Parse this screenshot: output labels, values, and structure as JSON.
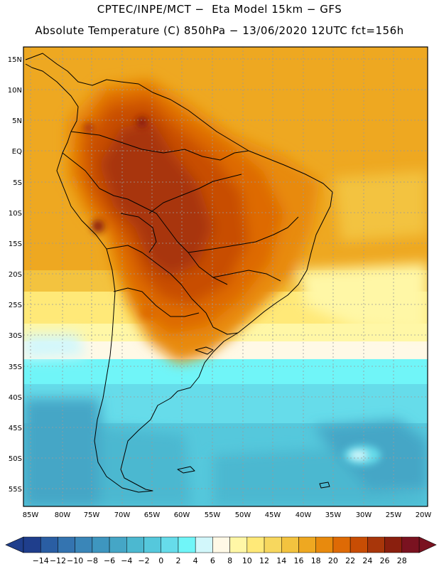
{
  "header": {
    "line1": "CPTEC/INPE/MCT −  Eta Model 15km − GFS",
    "line2": "Absolute Temperature (C) 850hPa − 13/06/2020 12UTC fct=156h"
  },
  "map": {
    "lat_labels": [
      "15N",
      "10N",
      "5N",
      "EQ",
      "5S",
      "10S",
      "15S",
      "20S",
      "25S",
      "30S",
      "35S",
      "40S",
      "45S",
      "50S",
      "55S"
    ],
    "lon_labels": [
      "85W",
      "80W",
      "75W",
      "70W",
      "65W",
      "60W",
      "55W",
      "50W",
      "45W",
      "40W",
      "35W",
      "30W",
      "25W",
      "20W"
    ]
  },
  "colorbar": {
    "labels": [
      "-14",
      "-12",
      "-10",
      "-8",
      "-6",
      "-4",
      "-2",
      "0",
      "2",
      "4",
      "6",
      "8",
      "10",
      "12",
      "14",
      "16",
      "18",
      "20",
      "22",
      "24",
      "26",
      "28"
    ],
    "colors": [
      "#1f3e8c",
      "#2a5ea3",
      "#3474b0",
      "#3a86b8",
      "#3e96bf",
      "#45a6c6",
      "#4cb8d0",
      "#55c8dc",
      "#66dcea",
      "#70f5f8",
      "#d2f7fb",
      "#fff9e6",
      "#fff7a6",
      "#ffe978",
      "#f7d75e",
      "#f3c33f",
      "#eea821",
      "#e88a0d",
      "#de6a05",
      "#c84d04",
      "#a8360a",
      "#8a1f0e",
      "#7a1220"
    ]
  }
}
